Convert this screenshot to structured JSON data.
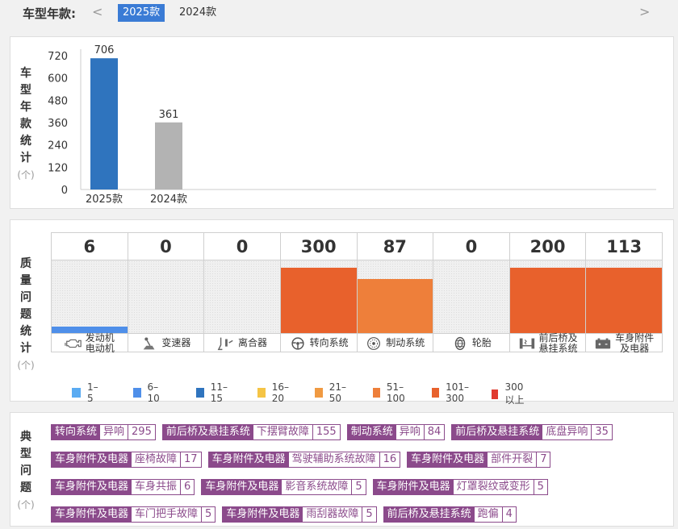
{
  "year_selector": {
    "label": "车型年款:",
    "prev": "<",
    "next": ">",
    "years": [
      "2025款",
      "2024款"
    ],
    "active": "2025款"
  },
  "year_stats": {
    "title_chars": [
      "车",
      "型",
      "年",
      "款",
      "统",
      "计"
    ],
    "unit": "(个)"
  },
  "chart_data": {
    "type": "bar",
    "categories": [
      "2025款",
      "2024款"
    ],
    "values": [
      706,
      361
    ],
    "colors": [
      "#2f74be",
      "#b3b3b3"
    ],
    "ylim": [
      0,
      720
    ],
    "yticks": [
      0,
      120,
      240,
      360,
      480,
      600,
      720
    ],
    "grid": false,
    "title": "",
    "xlabel": "",
    "ylabel": ""
  },
  "quality": {
    "title_chars": [
      "质",
      "量",
      "问",
      "题",
      "统",
      "计"
    ],
    "unit": "(个)",
    "max": 300,
    "columns": [
      {
        "value": 6,
        "level": 0.09,
        "color": "#4f8fe9",
        "label": "发动机电动机",
        "line1": "发动机",
        "line2": "电动机",
        "icon": "engine-icon"
      },
      {
        "value": 0,
        "level": 0,
        "color": "#4f8fe9",
        "label": "变速器",
        "line1": "变速器",
        "line2": "",
        "icon": "gear-shifter-icon"
      },
      {
        "value": 0,
        "level": 0,
        "color": "#4f8fe9",
        "label": "离合器",
        "line1": "离合器",
        "line2": "",
        "icon": "clutch-pedal-icon"
      },
      {
        "value": 300,
        "level": 0.9,
        "color": "#e8612c",
        "label": "转向系统",
        "line1": "转向系统",
        "line2": "",
        "icon": "steering-wheel-icon"
      },
      {
        "value": 87,
        "level": 0.75,
        "color": "#ee7f3a",
        "label": "制动系统",
        "line1": "制动系统",
        "line2": "",
        "icon": "brake-disc-icon"
      },
      {
        "value": 0,
        "level": 0,
        "color": "#4f8fe9",
        "label": "轮胎",
        "line1": "轮胎",
        "line2": "",
        "icon": "tire-icon"
      },
      {
        "value": 200,
        "level": 0.9,
        "color": "#e8612c",
        "label": "前后桥及悬挂系统",
        "line1": "前后桥及",
        "line2": "悬挂系统",
        "icon": "suspension-icon"
      },
      {
        "value": 113,
        "level": 0.9,
        "color": "#e8612c",
        "label": "车身附件及电器",
        "line1": "车身附件",
        "line2": "及电器",
        "icon": "battery-icon"
      }
    ],
    "legend": [
      {
        "label": "1–5",
        "color": "#5aabf2"
      },
      {
        "label": "6–10",
        "color": "#4f8fe9"
      },
      {
        "label": "11–15",
        "color": "#2f74be"
      },
      {
        "label": "16–20",
        "color": "#f5c445"
      },
      {
        "label": "21–50",
        "color": "#f09a42"
      },
      {
        "label": "51–100",
        "color": "#ee7f3a"
      },
      {
        "label": "101–300",
        "color": "#e8612c"
      },
      {
        "label": "300以上",
        "color": "#e03a2f"
      }
    ]
  },
  "issues": {
    "title_chars": [
      "典",
      "型",
      "问",
      "题"
    ],
    "unit": "(个)",
    "rows": [
      [
        {
          "category": "转向系统",
          "issue": "异响",
          "count": "295"
        },
        {
          "category": "前后桥及悬挂系统",
          "issue": "下摆臂故障",
          "count": "155"
        },
        {
          "category": "制动系统",
          "issue": "异响",
          "count": "84"
        },
        {
          "category": "前后桥及悬挂系统",
          "issue": "底盘异响",
          "count": "35"
        }
      ],
      [
        {
          "category": "车身附件及电器",
          "issue": "座椅故障",
          "count": "17"
        },
        {
          "category": "车身附件及电器",
          "issue": "驾驶辅助系统故障",
          "count": "16"
        },
        {
          "category": "车身附件及电器",
          "issue": "部件开裂",
          "count": "7"
        }
      ],
      [
        {
          "category": "车身附件及电器",
          "issue": "车身共振",
          "count": "6"
        },
        {
          "category": "车身附件及电器",
          "issue": "影音系统故障",
          "count": "5"
        },
        {
          "category": "车身附件及电器",
          "issue": "灯罩裂纹或变形",
          "count": "5"
        }
      ],
      [
        {
          "category": "车身附件及电器",
          "issue": "车门把手故障",
          "count": "5"
        },
        {
          "category": "车身附件及电器",
          "issue": "雨刮器故障",
          "count": "5"
        },
        {
          "category": "前后桥及悬挂系统",
          "issue": "跑偏",
          "count": "4"
        }
      ]
    ]
  }
}
